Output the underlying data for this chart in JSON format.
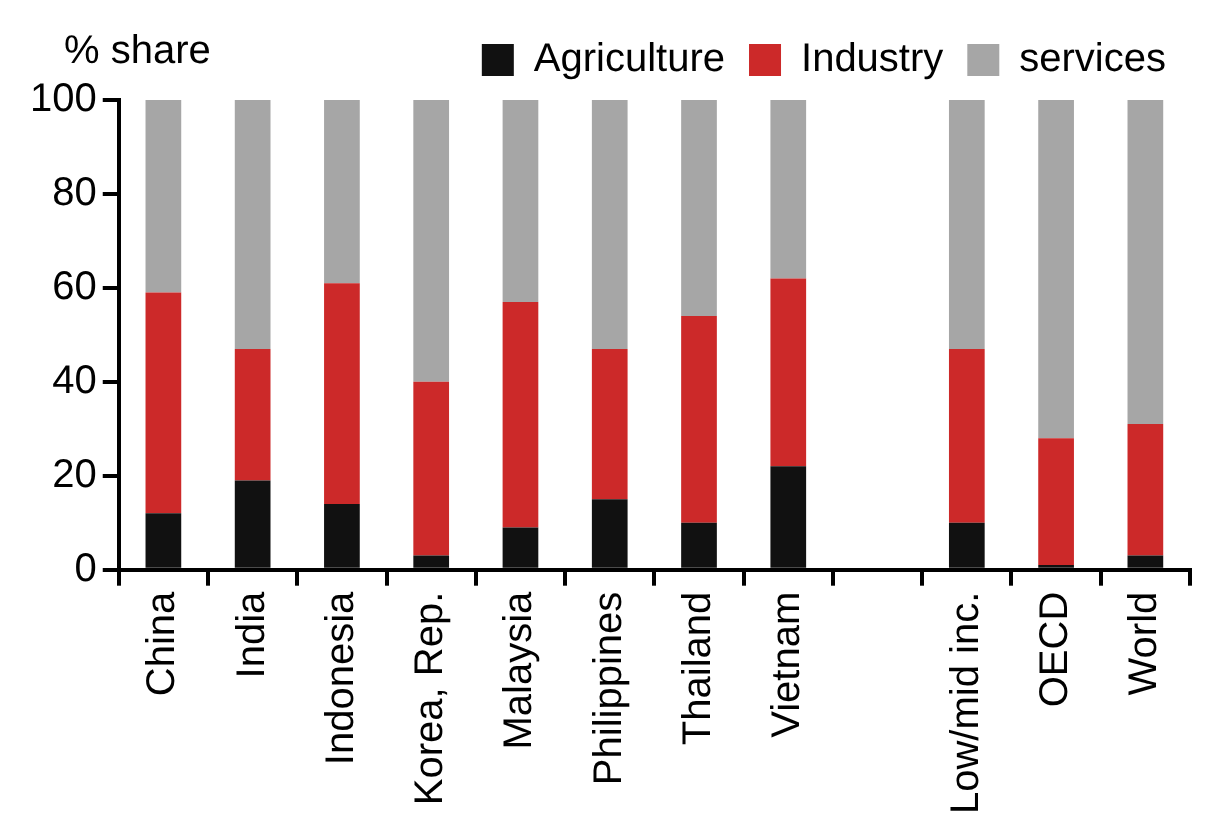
{
  "chart_data": {
    "type": "bar",
    "ylabel": "% share",
    "stacked": true,
    "legend": "top",
    "categories": [
      "China",
      "India",
      "Indonesia",
      "Korea, Rep.",
      "Malaysia",
      "Philippines",
      "Thailand",
      "Vietnam",
      null,
      "Low/mid inc.",
      "OECD",
      "World"
    ],
    "series": [
      {
        "name": "Agriculture",
        "color": "#111111",
        "values": [
          12,
          19,
          14,
          3,
          9,
          15,
          10,
          22,
          null,
          10,
          1,
          3
        ]
      },
      {
        "name": "Industry",
        "color": "#cc2929",
        "values": [
          47,
          28,
          47,
          37,
          48,
          32,
          44,
          40,
          null,
          37,
          27,
          28
        ]
      },
      {
        "name": "services",
        "color": "#a6a6a6",
        "values": [
          41,
          53,
          39,
          60,
          43,
          53,
          46,
          38,
          null,
          53,
          72,
          69
        ]
      }
    ],
    "ylim": [
      0,
      100
    ],
    "yticks": [
      0,
      20,
      40,
      60,
      80,
      100
    ],
    "grid": false
  }
}
